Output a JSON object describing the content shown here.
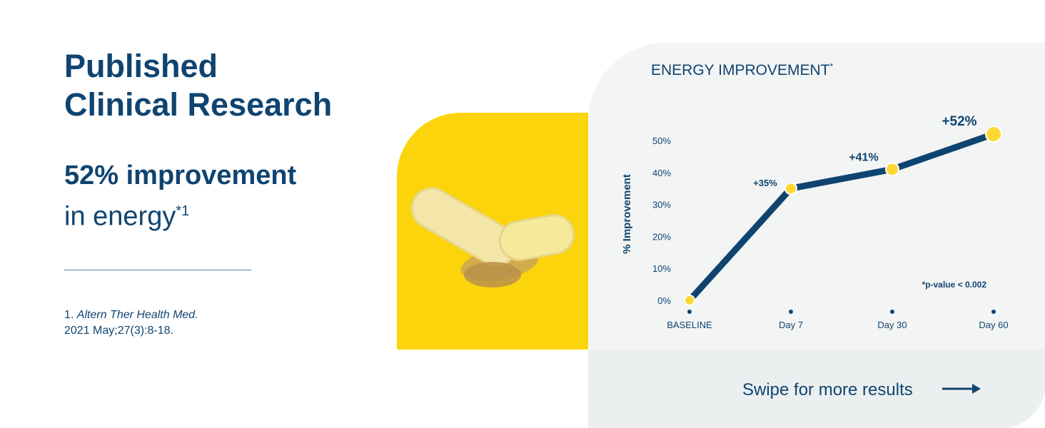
{
  "header": {
    "title_lines": [
      "Published",
      "Clinical Research"
    ],
    "stat_main": "52% improvement",
    "stat_sub": "in energy",
    "stat_sub_marker": "*1"
  },
  "citation": {
    "number": "1.",
    "journal": "Altern Ther Health Med.",
    "details": "2021 May;27(3):8-18."
  },
  "chart_data": {
    "type": "line",
    "title": "ENERGY IMPROVEMENT",
    "title_marker": "*",
    "y_label": "% Improvement",
    "categories": [
      "BASELINE",
      "Day 7",
      "Day 30",
      "Day 60"
    ],
    "values": [
      0,
      35,
      41,
      52
    ],
    "value_labels": [
      null,
      "+35%",
      "+41%",
      "+52%"
    ],
    "color": "#0f4470",
    "marker_color": "#fdd835",
    "ylim": [
      0,
      55
    ],
    "yticks": [
      {
        "value": 0,
        "label": "0%"
      },
      {
        "value": 10,
        "label": "10%"
      },
      {
        "value": 20,
        "label": "20%"
      },
      {
        "value": 30,
        "label": "30%"
      },
      {
        "value": 40,
        "label": "40%"
      },
      {
        "value": 50,
        "label": "50%"
      }
    ],
    "grid": false,
    "annotation": "*p-value < 0.002"
  },
  "footer": {
    "cta": "Swipe for more results"
  }
}
